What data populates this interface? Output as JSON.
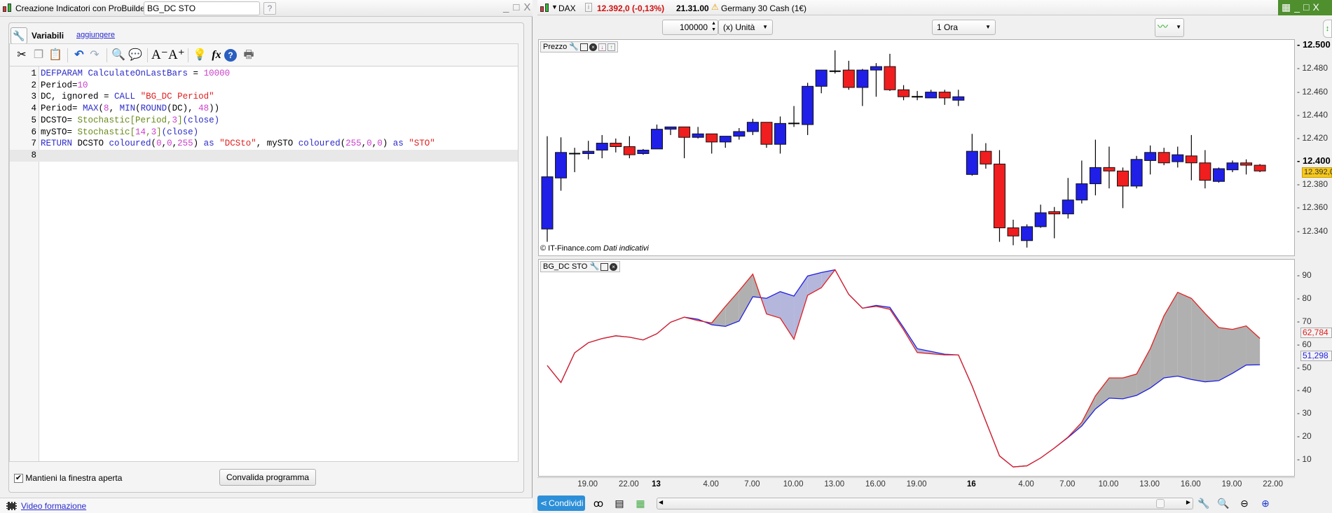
{
  "editor_window": {
    "title": "Creazione Indicatori con ProBuilder  -",
    "indicator_name": "BG_DC STO",
    "window_controls": [
      "minimize",
      "maximize",
      "close"
    ],
    "variables_label": "Variabili",
    "add_link": "aggiungere",
    "toolbar_icons": [
      "cut-icon",
      "copy-icon",
      "paste-icon",
      "undo-icon",
      "redo-icon",
      "search-icon",
      "comment-icon",
      "font-decrease-icon",
      "font-increase-icon",
      "lightbulb-icon",
      "function-icon",
      "help-icon",
      "print-icon"
    ],
    "code_lines": [
      [
        [
          "DEFPARAM",
          "k"
        ],
        [
          " CalculateOnLastBars",
          "k"
        ],
        [
          " = ",
          "t"
        ],
        [
          "10000",
          "n"
        ]
      ],
      [
        [
          "Period=",
          "t"
        ],
        [
          "10",
          "n"
        ]
      ],
      [
        [
          "DC, ignored = ",
          "t"
        ],
        [
          "CALL",
          "k"
        ],
        [
          " ",
          "t"
        ],
        [
          "\"BG_DC Period\"",
          "s"
        ]
      ],
      [
        [
          "Period= ",
          "t"
        ],
        [
          "MAX",
          "k"
        ],
        [
          "(",
          "t"
        ],
        [
          "8",
          "n"
        ],
        [
          ", ",
          "t"
        ],
        [
          "MIN",
          "k"
        ],
        [
          "(",
          "t"
        ],
        [
          "ROUND",
          "k"
        ],
        [
          "(DC), ",
          "t"
        ],
        [
          "48",
          "n"
        ],
        [
          "))",
          "t"
        ]
      ],
      [
        [
          "DCSTO= ",
          "t"
        ],
        [
          "Stochastic",
          "f"
        ],
        [
          "[Period,",
          "f"
        ],
        [
          "3",
          "n"
        ],
        [
          "]",
          "f"
        ],
        [
          "(close)",
          "k"
        ]
      ],
      [
        [
          "mySTO= ",
          "t"
        ],
        [
          "Stochastic",
          "f"
        ],
        [
          "[",
          "f"
        ],
        [
          "14",
          "n"
        ],
        [
          ",",
          "f"
        ],
        [
          "3",
          "n"
        ],
        [
          "]",
          "f"
        ],
        [
          "(close)",
          "k"
        ]
      ],
      [
        [
          "RETURN",
          "k"
        ],
        [
          " DCSTO ",
          "t"
        ],
        [
          "coloured",
          "k"
        ],
        [
          "(",
          "t"
        ],
        [
          "0",
          "n"
        ],
        [
          ",",
          "t"
        ],
        [
          "0",
          "n"
        ],
        [
          ",",
          "t"
        ],
        [
          "255",
          "n"
        ],
        [
          ") ",
          "t"
        ],
        [
          "as",
          "k"
        ],
        [
          " ",
          "t"
        ],
        [
          "\"DCSto\"",
          "s"
        ],
        [
          ", mySTO ",
          "t"
        ],
        [
          "coloured",
          "k"
        ],
        [
          "(",
          "t"
        ],
        [
          "255",
          "n"
        ],
        [
          ",",
          "t"
        ],
        [
          "0",
          "n"
        ],
        [
          ",",
          "t"
        ],
        [
          "0",
          "n"
        ],
        [
          ") ",
          "t"
        ],
        [
          "as",
          "k"
        ],
        [
          " ",
          "t"
        ],
        [
          "\"STO\"",
          "s"
        ]
      ],
      []
    ],
    "keep_open_label": "Mantieni la finestra aperta",
    "keep_open_checked": true,
    "validate_button": "Convalida programma",
    "video_link": "Video formazione"
  },
  "chart_window": {
    "instrument": "DAX",
    "price_change": "12.392,0 (-0,13%)",
    "time": "21.31.00",
    "description": "Germany 30 Cash (1€)",
    "quantity": "100000",
    "unit": "(x) Unità",
    "timeframe": "1 Ora",
    "price_panel_title": "Prezzo",
    "indicator_panel_title": "BG_DC STO",
    "copyright": "© IT-Finance.com",
    "data_note": "Dati indicativi",
    "share_button": "Condividi",
    "colors": {
      "up": "#1f1fe8",
      "down": "#f01e1e",
      "dcsto": "#2020e0",
      "sto": "#e02020",
      "fill_sto_above": "#b0b0b0",
      "fill_dcsto_above": "#b4b6dc",
      "last_price_bg": "#f7c81c"
    }
  },
  "chart_data": [
    {
      "type": "candlestick",
      "title": "Prezzo",
      "ylim": [
        12318,
        12505
      ],
      "grid": false,
      "y_ticks": [
        {
          "v": 12500,
          "label": "12.500",
          "bold": true
        },
        {
          "v": 12480,
          "label": "12.480"
        },
        {
          "v": 12460,
          "label": "12.460"
        },
        {
          "v": 12440,
          "label": "12.440"
        },
        {
          "v": 12420,
          "label": "12.420"
        },
        {
          "v": 12400,
          "label": "12.400",
          "bold": true
        },
        {
          "v": 12380,
          "label": "12.380"
        },
        {
          "v": 12360,
          "label": "12.360"
        },
        {
          "v": 12340,
          "label": "12.340"
        }
      ],
      "last_price": {
        "v": 12392,
        "label": "12.392,0"
      },
      "columns": [
        "time",
        "open",
        "high",
        "low",
        "close"
      ],
      "candles": [
        [
          "12 16:00",
          12342,
          12422,
          12331,
          12387
        ],
        [
          "12 17:00",
          12386,
          12421,
          12375,
          12408
        ],
        [
          "12 18:00",
          12407,
          12412,
          12391,
          12407
        ],
        [
          "12 19:00",
          12407,
          12418,
          12402,
          12409
        ],
        [
          "12 20:00",
          12410,
          12423,
          12403,
          12416
        ],
        [
          "12 21:00",
          12416,
          12420,
          12408,
          12413
        ],
        [
          "12 22:00",
          12413,
          12422,
          12403,
          12406
        ],
        [
          "12 23:00",
          12407,
          12411,
          12406,
          12410
        ],
        [
          "13 0:00",
          12411,
          12432,
          12411,
          12428
        ],
        [
          "13 1:00",
          12428,
          12430,
          12423,
          12430
        ],
        [
          "13 2:00",
          12430,
          12430,
          12403,
          12421
        ],
        [
          "13 3:00",
          12421,
          12430,
          12420,
          12424
        ],
        [
          "13 4:00",
          12424,
          12424,
          12407,
          12417
        ],
        [
          "13 5:00",
          12417,
          12422,
          12412,
          12422
        ],
        [
          "13 6:00",
          12422,
          12429,
          12419,
          12426
        ],
        [
          "13 7:00",
          12426,
          12437,
          12423,
          12434
        ],
        [
          "13 8:00",
          12434,
          12434,
          12412,
          12415
        ],
        [
          "13 9:00",
          12415,
          12439,
          12407,
          12433
        ],
        [
          "13 10:00",
          12433,
          12448,
          12430,
          12433
        ],
        [
          "13 11:00",
          12432,
          12468,
          12423,
          12465
        ],
        [
          "13 12:00",
          12465,
          12479,
          12459,
          12479
        ],
        [
          "13 13:00",
          12478,
          12496,
          12476,
          12478
        ],
        [
          "13 14:00",
          12479,
          12487,
          12462,
          12464
        ],
        [
          "13 15:00",
          12464,
          12480,
          12448,
          12479
        ],
        [
          "13 16:00",
          12479,
          12485,
          12456,
          12482
        ],
        [
          "13 17:00",
          12482,
          12493,
          12461,
          12462
        ],
        [
          "13 18:00",
          12462,
          12466,
          12453,
          12456
        ],
        [
          "13 19:00",
          12456,
          12461,
          12453,
          12456
        ],
        [
          "13 20:00",
          12455,
          12462,
          12455,
          12460
        ],
        [
          "13 21:00",
          12460,
          12462,
          12449,
          12455
        ],
        [
          "13 22:00",
          12453,
          12462,
          12448,
          12456
        ],
        [
          "16 0:00",
          12389,
          12424,
          12388,
          12409
        ],
        [
          "16 1:00",
          12409,
          12416,
          12394,
          12398
        ],
        [
          "16 2:00",
          12398,
          12410,
          12331,
          12343
        ],
        [
          "16 3:00",
          12343,
          12350,
          12328,
          12336
        ],
        [
          "16 4:00",
          12332,
          12346,
          12326,
          12344
        ],
        [
          "16 5:00",
          12344,
          12363,
          12343,
          12356
        ],
        [
          "16 6:00",
          12357,
          12361,
          12334,
          12355
        ],
        [
          "16 7:00",
          12355,
          12386,
          12351,
          12367
        ],
        [
          "16 8:00",
          12367,
          12401,
          12364,
          12381
        ],
        [
          "16 9:00",
          12381,
          12419,
          12371,
          12395
        ],
        [
          "16 10:00",
          12395,
          12413,
          12377,
          12392
        ],
        [
          "16 11:00",
          12392,
          12395,
          12360,
          12379
        ],
        [
          "16 12:00",
          12379,
          12405,
          12377,
          12402
        ],
        [
          "16 13:00",
          12401,
          12414,
          12389,
          12408
        ],
        [
          "16 14:00",
          12408,
          12412,
          12397,
          12399
        ],
        [
          "16 15:00",
          12400,
          12413,
          12395,
          12406
        ],
        [
          "16 16:00",
          12405,
          12423,
          12384,
          12399
        ],
        [
          "16 17:00",
          12399,
          12410,
          12377,
          12384
        ],
        [
          "16 18:00",
          12383,
          12395,
          12382,
          12394
        ],
        [
          "16 19:00",
          12393,
          12401,
          12391,
          12399
        ],
        [
          "16 20:00",
          12399,
          12402,
          12389,
          12397
        ],
        [
          "16 21:00",
          12397,
          12398,
          12391,
          12392
        ]
      ]
    },
    {
      "type": "line",
      "title": "BG_DC STO",
      "ylim": [
        2.4,
        97
      ],
      "grid": false,
      "y_ticks": [
        90,
        80,
        70,
        60,
        50,
        40,
        30,
        20,
        10
      ],
      "series": [
        {
          "name": "DCSto",
          "color": "#2020e0",
          "last_label": "51,298",
          "values": [
            51.0,
            43.6,
            56.5,
            60.9,
            62.7,
            63.9,
            63.3,
            62.1,
            64.8,
            69.8,
            72.0,
            71.1,
            68.7,
            68.0,
            70.3,
            80.9,
            80.2,
            83.1,
            81.2,
            89.9,
            91.4,
            92.6,
            81.9,
            75.9,
            77.1,
            76.3,
            67.5,
            58.3,
            57.1,
            55.9,
            55.6,
            42.1,
            26.8,
            11.7,
            6.9,
            7.4,
            10.8,
            15.1,
            19.7,
            24.7,
            32.1,
            36.8,
            36.5,
            38.0,
            41.2,
            45.6,
            46.4,
            44.9,
            43.9,
            44.4,
            47.6,
            51.2,
            51.298
          ]
        },
        {
          "name": "STO",
          "color": "#e02020",
          "last_label": "62,784",
          "values": [
            51.0,
            43.6,
            56.5,
            60.9,
            62.7,
            63.9,
            63.3,
            62.1,
            64.8,
            69.8,
            72.0,
            70.5,
            69.5,
            76.7,
            83.5,
            90.7,
            73.4,
            71.6,
            62.4,
            81.5,
            84.8,
            92.6,
            81.9,
            75.9,
            76.7,
            75.4,
            66.5,
            56.6,
            56.1,
            55.6,
            55.6,
            42.1,
            26.8,
            11.7,
            6.9,
            7.4,
            10.8,
            15.1,
            19.9,
            26.3,
            37.8,
            45.6,
            45.6,
            47.3,
            58.3,
            72.6,
            82.8,
            80.2,
            73.6,
            67.5,
            66.7,
            68.2,
            62.784
          ]
        }
      ]
    }
  ],
  "x_ticks": [
    {
      "at": "12 19:00",
      "label": "19.00"
    },
    {
      "at": "12 22:00",
      "label": "22.00"
    },
    {
      "at": "13 0:00",
      "label": "13",
      "bold": true
    },
    {
      "at": "13 4:00",
      "label": "4.00"
    },
    {
      "at": "13 7:00",
      "label": "7.00"
    },
    {
      "at": "13 10:00",
      "label": "10.00"
    },
    {
      "at": "13 13:00",
      "label": "13.00"
    },
    {
      "at": "13 16:00",
      "label": "16.00"
    },
    {
      "at": "13 19:00",
      "label": "19.00"
    },
    {
      "at": "16 0:00",
      "label": "16",
      "bold": true
    },
    {
      "at": "16 4:00",
      "label": "4.00"
    },
    {
      "at": "16 7:00",
      "label": "7.00"
    },
    {
      "at": "16 10:00",
      "label": "10.00"
    },
    {
      "at": "16 13:00",
      "label": "13.00"
    },
    {
      "at": "16 16:00",
      "label": "16.00"
    },
    {
      "at": "16 19:00",
      "label": "19.00"
    },
    {
      "at": "16 22:00",
      "label": "22.00"
    }
  ]
}
